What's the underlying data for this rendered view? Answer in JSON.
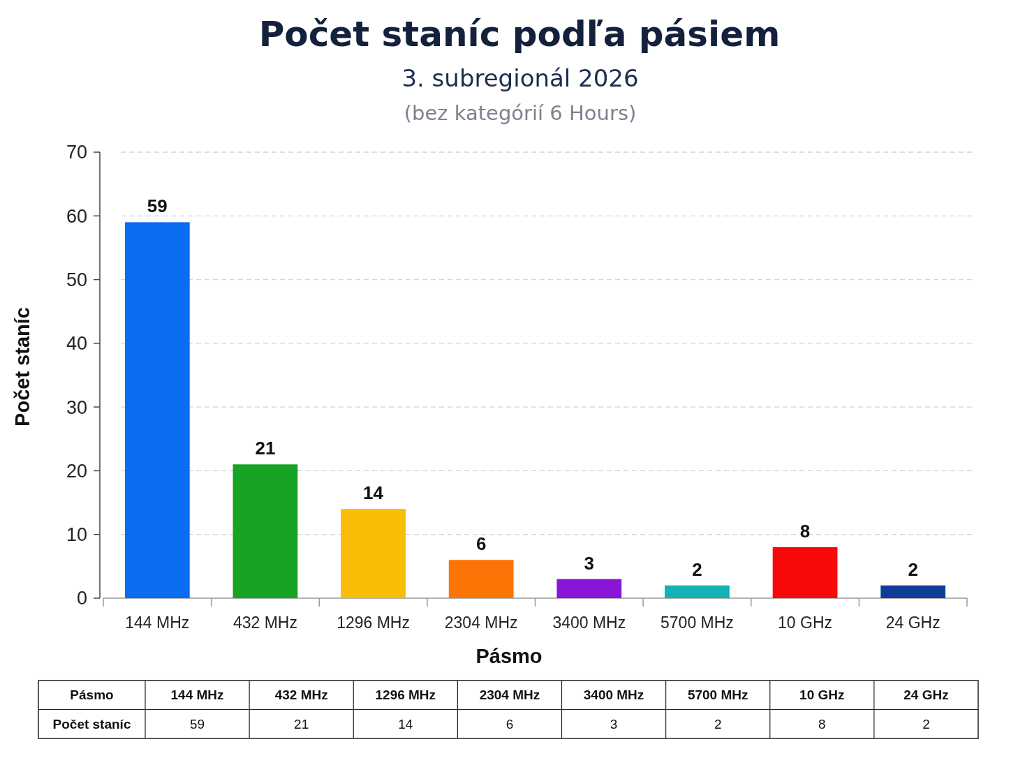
{
  "chart_data": [
    {
      "type": "bar",
      "title": "Počet staníc podľa pásiem",
      "subtitle": "3. subregionál 2026",
      "annotations": [
        "(bez kategórií 6 Hours)"
      ],
      "xlabel": "Pásmo",
      "ylabel": "Počet staníc",
      "categories": [
        "144 MHz",
        "432 MHz",
        "1296 MHz",
        "2304 MHz",
        "3400 MHz",
        "5700 MHz",
        "10 GHz",
        "24 GHz"
      ],
      "values": [
        59,
        21,
        14,
        6,
        3,
        2,
        8,
        2
      ],
      "value_labels": [
        "59",
        "21",
        "14",
        "6",
        "3",
        "2",
        "8",
        "2"
      ],
      "colors": [
        "#0a6cf0",
        "#17a323",
        "#f9bc07",
        "#fb7506",
        "#8a15d6",
        "#14b1b5",
        "#f80808",
        "#0f3c96"
      ],
      "ylim": [
        0,
        70
      ],
      "yticks": [
        0,
        10,
        20,
        30,
        40,
        50,
        60,
        70
      ],
      "grid": "y"
    },
    {
      "type": "other",
      "xlabel": "Pásmo",
      "ylabel": "Počet staníc",
      "categories": [
        "144 MHz",
        "432 MHz",
        "1296 MHz",
        "2304 MHz",
        "3400 MHz",
        "5700 MHz",
        "10 GHz",
        "24 GHz"
      ],
      "values": [
        59,
        21,
        14,
        6,
        3,
        2,
        8,
        2
      ],
      "data_labels": true
    }
  ]
}
